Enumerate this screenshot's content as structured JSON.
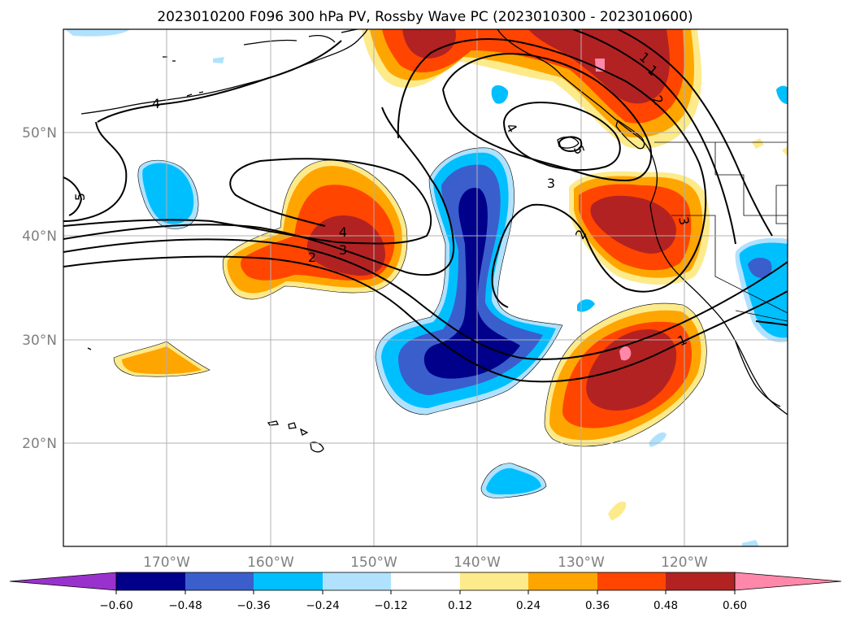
{
  "title": "2023010200 F096 300 hPa PV, Rossby Wave PC (2023010300 - 2023010600)",
  "lat_labels": [
    "50°N",
    "40°N",
    "30°N",
    "20°N"
  ],
  "lon_labels": [
    "170°W",
    "160°W",
    "150°W",
    "140°W",
    "130°W",
    "120°W"
  ],
  "colorbar": {
    "colors": [
      "#9932cc",
      "#00008b",
      "#3a5fcd",
      "#00bfff",
      "#b0e2ff",
      "#ffffff",
      "#fdea8a",
      "#ffa500",
      "#ff4500",
      "#b22222",
      "#ff88aa"
    ],
    "tick_labels": [
      "−0.60",
      "−0.48",
      "−0.36",
      "−0.24",
      "−0.12",
      "0.12",
      "0.24",
      "0.36",
      "0.48",
      "0.60"
    ]
  },
  "contour_labels": [
    "4",
    "4",
    "3",
    "2",
    "5",
    "4",
    "5",
    "3",
    "2",
    "1",
    "1",
    "1",
    "2",
    "3"
  ],
  "colors": {
    "coast": "#000000",
    "contour": "#000000",
    "grid": "#b0b0b0"
  }
}
